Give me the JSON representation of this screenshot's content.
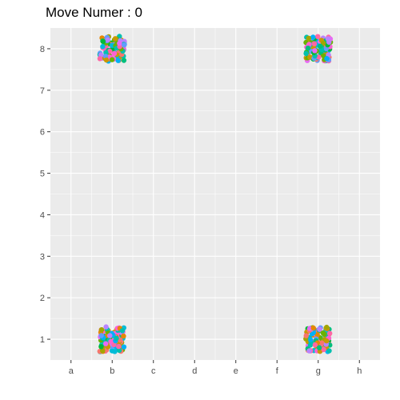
{
  "chart_data": {
    "type": "scatter",
    "title": "Move Numer : 0",
    "xlabel": "",
    "ylabel": "",
    "x_ticks": [
      "a",
      "b",
      "c",
      "d",
      "e",
      "f",
      "g",
      "h"
    ],
    "y_ticks": [
      "1",
      "2",
      "3",
      "4",
      "5",
      "6",
      "7",
      "8"
    ],
    "xlim": [
      0.5,
      8.5
    ],
    "ylim": [
      0.5,
      8.5
    ],
    "grid": true,
    "legend": "none",
    "panel_background": "#EBEBEB",
    "grid_color": "#FFFFFF",
    "jitter": 0.3,
    "points_per_cluster": 110,
    "clusters": [
      {
        "x": 2,
        "y": 8
      },
      {
        "x": 7,
        "y": 8
      },
      {
        "x": 2,
        "y": 1
      },
      {
        "x": 7,
        "y": 1
      }
    ],
    "palette": [
      "#F8766D",
      "#E58700",
      "#C99800",
      "#A3A500",
      "#6BB100",
      "#00BA38",
      "#00BF7D",
      "#00C0AF",
      "#00BCD8",
      "#00B0F6",
      "#619CFF",
      "#B983FF",
      "#E76BF3",
      "#FD61D1",
      "#FF67A4"
    ]
  }
}
